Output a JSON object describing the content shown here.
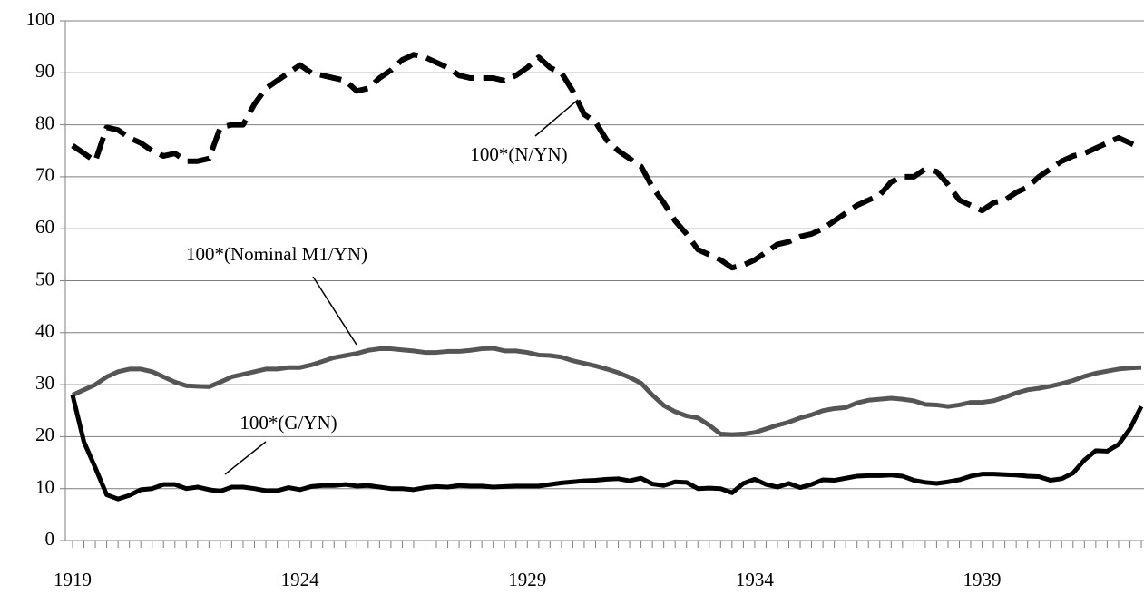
{
  "chart_data": {
    "type": "line",
    "categories": [
      "1919",
      null,
      null,
      null,
      null,
      null,
      null,
      null,
      null,
      null,
      null,
      null,
      null,
      null,
      null,
      null,
      null,
      null,
      null,
      null,
      "1924",
      null,
      null,
      null,
      null,
      null,
      null,
      null,
      null,
      null,
      null,
      null,
      null,
      null,
      null,
      null,
      null,
      null,
      null,
      null,
      "1929",
      null,
      null,
      null,
      null,
      null,
      null,
      null,
      null,
      null,
      null,
      null,
      null,
      null,
      null,
      null,
      null,
      null,
      null,
      null,
      "1934",
      null,
      null,
      null,
      null,
      null,
      null,
      null,
      null,
      null,
      null,
      null,
      null,
      null,
      null,
      null,
      null,
      null,
      null,
      null,
      "1939",
      null,
      null,
      null,
      null,
      null,
      null,
      null,
      null,
      null,
      null,
      null,
      null,
      null,
      null
    ],
    "series": [
      {
        "name": "100*(N/YN)",
        "color": "#000000",
        "dash": true,
        "values": [
          76,
          74.5,
          73,
          79.5,
          79,
          77.5,
          76.5,
          75,
          74,
          74.5,
          73,
          73,
          73.5,
          79.5,
          80,
          80,
          84,
          87,
          88.5,
          90,
          91.5,
          90,
          89.5,
          89,
          88.5,
          86.5,
          87,
          89,
          90.5,
          92.5,
          93.5,
          93,
          92,
          91,
          89.5,
          89,
          89,
          89,
          88.5,
          89.5,
          91,
          93,
          91,
          90,
          86.5,
          82,
          80.5,
          77,
          75,
          73.5,
          72,
          68,
          65,
          61.5,
          59,
          56,
          55,
          54,
          52.5,
          53,
          54,
          55.5,
          57,
          57.5,
          58.5,
          59,
          60,
          61.5,
          63,
          64.5,
          65.5,
          66.5,
          69,
          70,
          70,
          71.5,
          71,
          68.5,
          65.5,
          64.5,
          63.5,
          65,
          65.5,
          67,
          68,
          70,
          71.5,
          73,
          74,
          74.5,
          75.5,
          76.5,
          77.5,
          76.5,
          75.5
        ]
      },
      {
        "name": "100*(Nominal M1/YN)",
        "color": "#555555",
        "dash": false,
        "values": [
          28,
          29,
          30,
          31.5,
          32.5,
          33,
          33,
          32.5,
          31.5,
          30.5,
          29.8,
          29.7,
          29.6,
          30.5,
          31.5,
          32,
          32.5,
          33,
          33,
          33.3,
          33.3,
          33.8,
          34.5,
          35.2,
          35.6,
          36,
          36.6,
          36.9,
          36.9,
          36.7,
          36.5,
          36.2,
          36.2,
          36.4,
          36.4,
          36.6,
          36.9,
          37,
          36.5,
          36.5,
          36.2,
          35.7,
          35.6,
          35.3,
          34.6,
          34.1,
          33.6,
          33,
          32.3,
          31.4,
          30.3,
          28,
          26,
          24.8,
          24,
          23.6,
          22.2,
          20.5,
          20.4,
          20.5,
          20.8,
          21.5,
          22.2,
          22.8,
          23.6,
          24.2,
          25,
          25.4,
          25.6,
          26.5,
          27,
          27.2,
          27.4,
          27.2,
          26.9,
          26.2,
          26.1,
          25.8,
          26.1,
          26.6,
          26.6,
          26.9,
          27.6,
          28.4,
          29,
          29.3,
          29.7,
          30.2,
          30.8,
          31.6,
          32.2,
          32.6,
          33,
          33.2,
          33.3
        ]
      },
      {
        "name": "100*(G/YN)",
        "color": "#000000",
        "dash": false,
        "values": [
          28,
          19,
          14,
          8.8,
          8,
          8.7,
          9.8,
          10,
          10.8,
          10.8,
          10,
          10.3,
          9.8,
          9.5,
          10.3,
          10.3,
          10,
          9.6,
          9.6,
          10.2,
          9.8,
          10.4,
          10.6,
          10.6,
          10.8,
          10.5,
          10.6,
          10.3,
          10,
          10,
          9.8,
          10.2,
          10.4,
          10.3,
          10.6,
          10.5,
          10.5,
          10.3,
          10.4,
          10.5,
          10.5,
          10.5,
          10.8,
          11.1,
          11.3,
          11.5,
          11.6,
          11.8,
          11.9,
          11.5,
          12,
          10.9,
          10.6,
          11.3,
          11.2,
          10,
          10.1,
          10,
          9.2,
          11,
          11.8,
          10.8,
          10.3,
          11,
          10.2,
          10.8,
          11.7,
          11.6,
          12,
          12.4,
          12.5,
          12.5,
          12.6,
          12.4,
          11.6,
          11.2,
          11,
          11.3,
          11.7,
          12.4,
          12.8,
          12.8,
          12.7,
          12.6,
          12.4,
          12.3,
          11.6,
          11.9,
          13,
          15.5,
          17.3,
          17.2,
          18.5,
          21.5,
          25.8
        ]
      }
    ],
    "ylim": [
      0,
      100
    ],
    "yticks": [
      0,
      10,
      20,
      30,
      40,
      50,
      60,
      70,
      80,
      90,
      100
    ],
    "grid": true
  }
}
